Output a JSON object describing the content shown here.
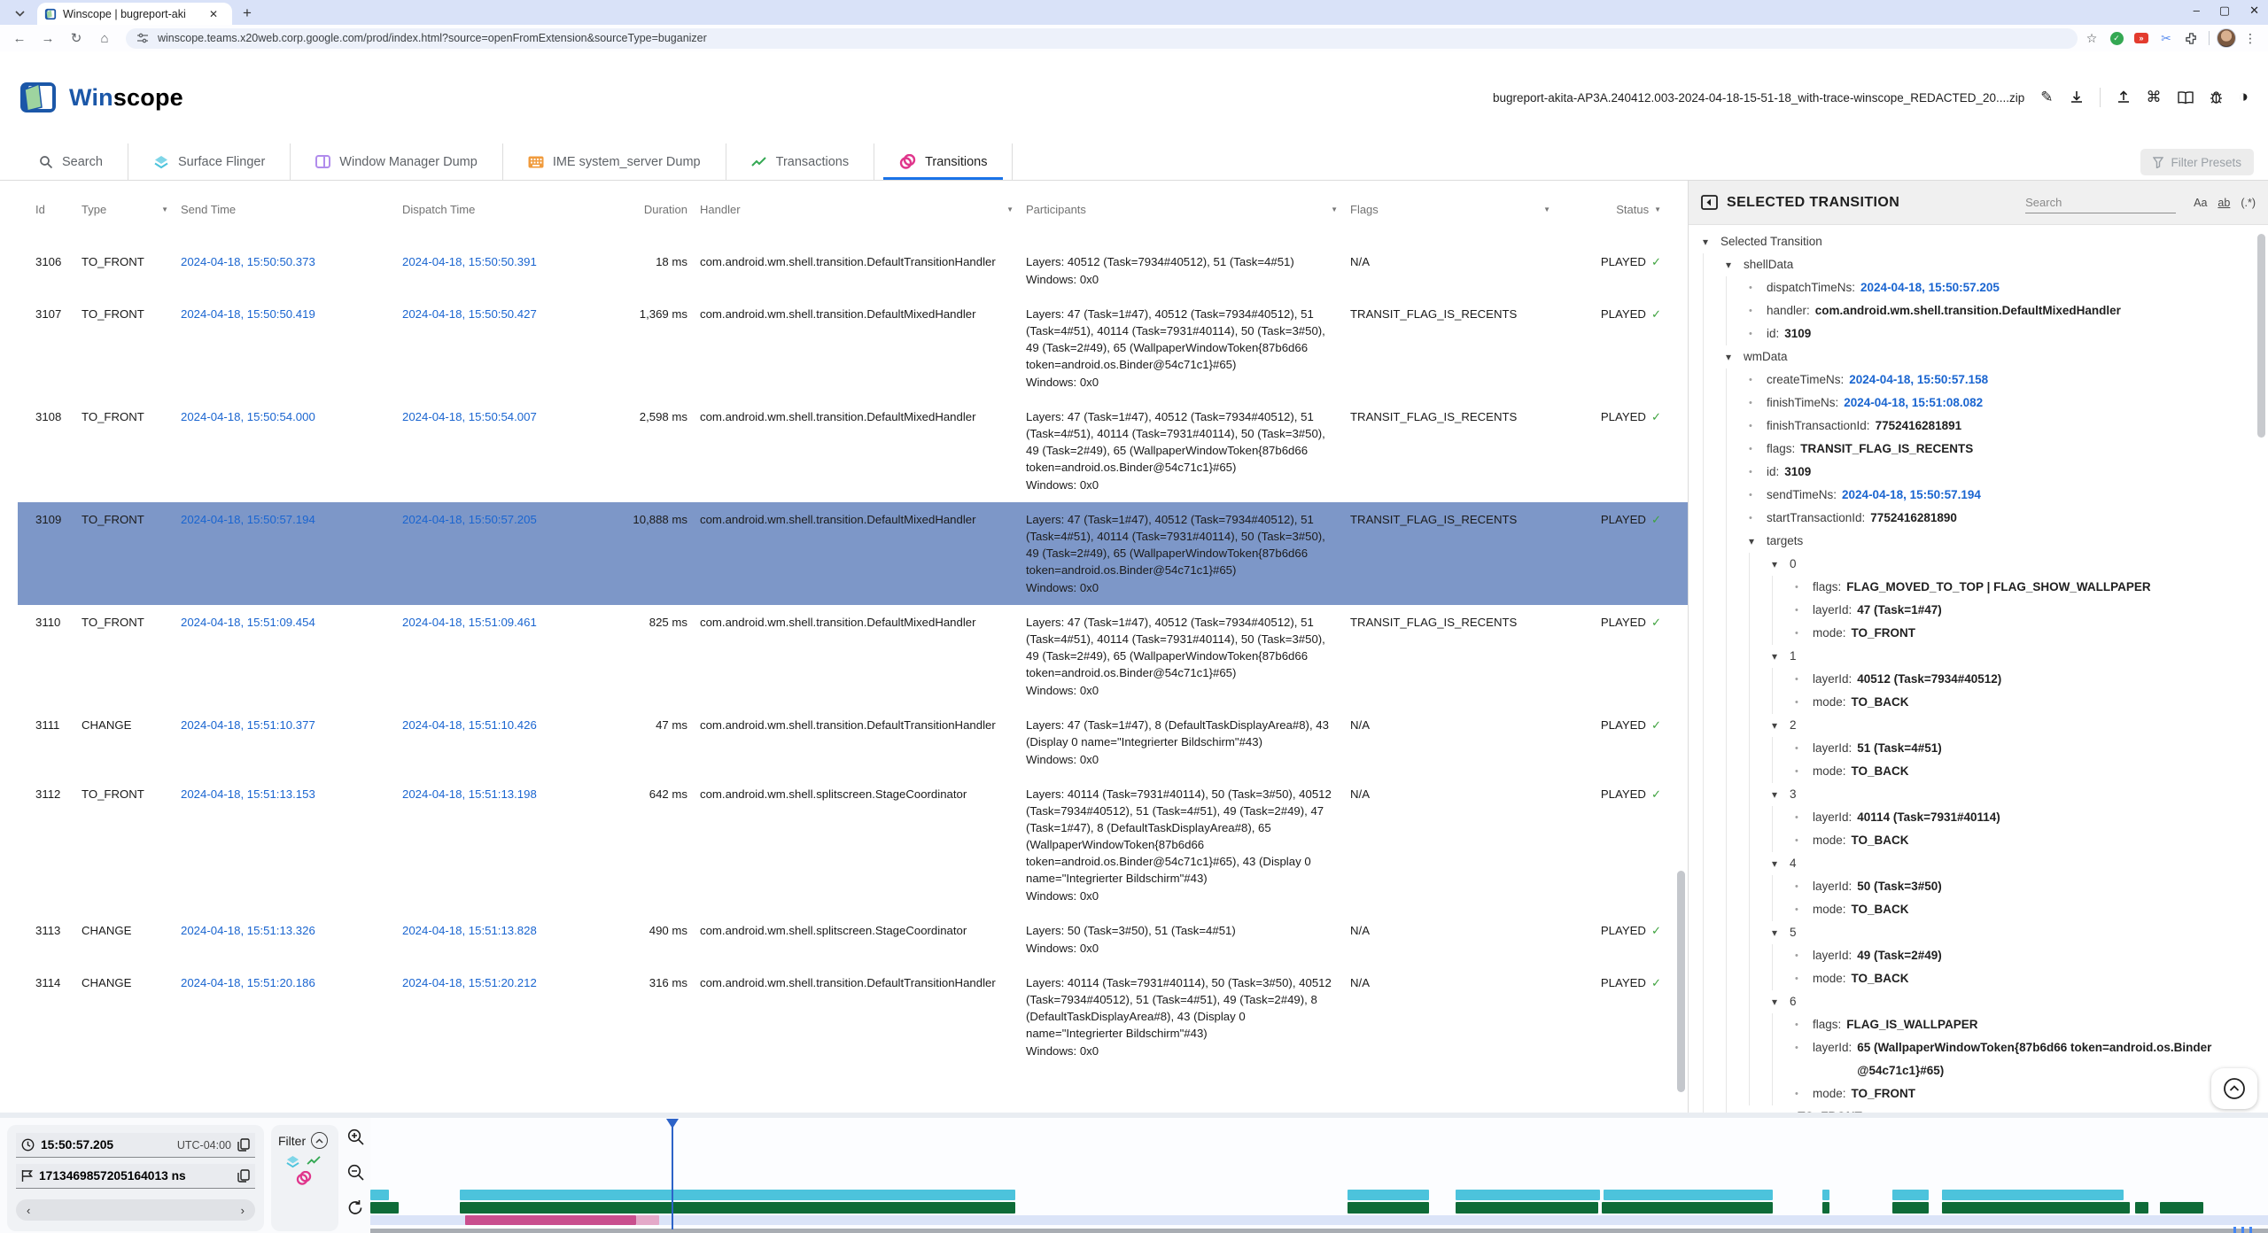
{
  "browser": {
    "tab_title": "Winscope | bugreport-aki",
    "url": "winscope.teams.x20web.corp.google.com/prod/index.html?source=openFromExtension&sourceType=buganizer",
    "window_controls": {
      "minimize": "–",
      "maximize": "▢",
      "close": "✕"
    }
  },
  "header": {
    "app_title_prefix": "Win",
    "app_title_suffix": "scope",
    "file_name": "bugreport-akita-AP3A.240412.003-2024-04-18-15-51-18_with-trace-winscope_REDACTED_20....zip"
  },
  "tabs": [
    {
      "label": "Search",
      "icon": "search-icon",
      "active": false
    },
    {
      "label": "Surface Flinger",
      "icon": "layers-icon",
      "active": false
    },
    {
      "label": "Window Manager Dump",
      "icon": "window-icon",
      "active": false
    },
    {
      "label": "IME system_server Dump",
      "icon": "keyboard-icon",
      "active": false
    },
    {
      "label": "Transactions",
      "icon": "trend-icon",
      "active": false
    },
    {
      "label": "Transitions",
      "icon": "rings-icon",
      "active": true
    }
  ],
  "toolbar": {
    "filter_presets": "Filter Presets"
  },
  "table": {
    "columns": [
      {
        "label": "Id"
      },
      {
        "label": "Type",
        "filter": true
      },
      {
        "label": "Send Time"
      },
      {
        "label": "Dispatch Time"
      },
      {
        "label": "Duration"
      },
      {
        "label": "Handler",
        "filter": true
      },
      {
        "label": "Participants",
        "filter": true
      },
      {
        "label": "Flags",
        "filter": true
      },
      {
        "label": "Status",
        "filter": true
      }
    ],
    "rows": [
      {
        "id": "3106",
        "type": "TO_FRONT",
        "send_time": "2024-04-18, 15:50:50.373",
        "dispatch_time": "2024-04-18, 15:50:50.391",
        "duration": "18 ms",
        "handler": "com.android.wm.shell.transition.DefaultTransitionHandler",
        "layers": "Layers: 40512 (Task=7934#40512), 51 (Task=4#51)",
        "windows": "Windows: 0x0",
        "flags": "N/A",
        "status": "PLAYED",
        "selected": false
      },
      {
        "id": "3107",
        "type": "TO_FRONT",
        "send_time": "2024-04-18, 15:50:50.419",
        "dispatch_time": "2024-04-18, 15:50:50.427",
        "duration": "1,369 ms",
        "handler": "com.android.wm.shell.transition.DefaultMixedHandler",
        "layers": "Layers: 47 (Task=1#47), 40512 (Task=7934#40512), 51 (Task=4#51), 40114 (Task=7931#40114), 50 (Task=3#50), 49 (Task=2#49), 65 (WallpaperWindowToken{87b6d66 token=android.os.Binder@54c71c1}#65)",
        "windows": "Windows: 0x0",
        "flags": "TRANSIT_FLAG_IS_RECENTS",
        "status": "PLAYED",
        "selected": false
      },
      {
        "id": "3108",
        "type": "TO_FRONT",
        "send_time": "2024-04-18, 15:50:54.000",
        "dispatch_time": "2024-04-18, 15:50:54.007",
        "duration": "2,598 ms",
        "handler": "com.android.wm.shell.transition.DefaultMixedHandler",
        "layers": "Layers: 47 (Task=1#47), 40512 (Task=7934#40512), 51 (Task=4#51), 40114 (Task=7931#40114), 50 (Task=3#50), 49 (Task=2#49), 65 (WallpaperWindowToken{87b6d66 token=android.os.Binder@54c71c1}#65)",
        "windows": "Windows: 0x0",
        "flags": "TRANSIT_FLAG_IS_RECENTS",
        "status": "PLAYED",
        "selected": false
      },
      {
        "id": "3109",
        "type": "TO_FRONT",
        "send_time": "2024-04-18, 15:50:57.194",
        "dispatch_time": "2024-04-18, 15:50:57.205",
        "duration": "10,888 ms",
        "handler": "com.android.wm.shell.transition.DefaultMixedHandler",
        "layers": "Layers: 47 (Task=1#47), 40512 (Task=7934#40512), 51 (Task=4#51), 40114 (Task=7931#40114), 50 (Task=3#50), 49 (Task=2#49), 65 (WallpaperWindowToken{87b6d66 token=android.os.Binder@54c71c1}#65)",
        "windows": "Windows: 0x0",
        "flags": "TRANSIT_FLAG_IS_RECENTS",
        "status": "PLAYED",
        "selected": true
      },
      {
        "id": "3110",
        "type": "TO_FRONT",
        "send_time": "2024-04-18, 15:51:09.454",
        "dispatch_time": "2024-04-18, 15:51:09.461",
        "duration": "825 ms",
        "handler": "com.android.wm.shell.transition.DefaultMixedHandler",
        "layers": "Layers: 47 (Task=1#47), 40512 (Task=7934#40512), 51 (Task=4#51), 40114 (Task=7931#40114), 50 (Task=3#50), 49 (Task=2#49), 65 (WallpaperWindowToken{87b6d66 token=android.os.Binder@54c71c1}#65)",
        "windows": "Windows: 0x0",
        "flags": "TRANSIT_FLAG_IS_RECENTS",
        "status": "PLAYED",
        "selected": false
      },
      {
        "id": "3111",
        "type": "CHANGE",
        "send_time": "2024-04-18, 15:51:10.377",
        "dispatch_time": "2024-04-18, 15:51:10.426",
        "duration": "47 ms",
        "handler": "com.android.wm.shell.transition.DefaultTransitionHandler",
        "layers": "Layers: 47 (Task=1#47), 8 (DefaultTaskDisplayArea#8), 43 (Display 0 name=\"Integrierter Bildschirm\"#43)",
        "windows": "Windows: 0x0",
        "flags": "N/A",
        "status": "PLAYED",
        "selected": false
      },
      {
        "id": "3112",
        "type": "TO_FRONT",
        "send_time": "2024-04-18, 15:51:13.153",
        "dispatch_time": "2024-04-18, 15:51:13.198",
        "duration": "642 ms",
        "handler": "com.android.wm.shell.splitscreen.StageCoordinator",
        "layers": "Layers: 40114 (Task=7931#40114), 50 (Task=3#50), 40512 (Task=7934#40512), 51 (Task=4#51), 49 (Task=2#49), 47 (Task=1#47), 8 (DefaultTaskDisplayArea#8), 65 (WallpaperWindowToken{87b6d66 token=android.os.Binder@54c71c1}#65), 43 (Display 0 name=\"Integrierter Bildschirm\"#43)",
        "windows": "Windows: 0x0",
        "flags": "N/A",
        "status": "PLAYED",
        "selected": false
      },
      {
        "id": "3113",
        "type": "CHANGE",
        "send_time": "2024-04-18, 15:51:13.326",
        "dispatch_time": "2024-04-18, 15:51:13.828",
        "duration": "490 ms",
        "handler": "com.android.wm.shell.splitscreen.StageCoordinator",
        "layers": "Layers: 50 (Task=3#50), 51 (Task=4#51)",
        "windows": "Windows: 0x0",
        "flags": "N/A",
        "status": "PLAYED",
        "selected": false
      },
      {
        "id": "3114",
        "type": "CHANGE",
        "send_time": "2024-04-18, 15:51:20.186",
        "dispatch_time": "2024-04-18, 15:51:20.212",
        "duration": "316 ms",
        "handler": "com.android.wm.shell.transition.DefaultTransitionHandler",
        "layers": "Layers: 40114 (Task=7931#40114), 50 (Task=3#50), 40512 (Task=7934#40512), 51 (Task=4#51), 49 (Task=2#49), 8 (DefaultTaskDisplayArea#8), 43 (Display 0 name=\"Integrierter Bildschirm\"#43)",
        "windows": "Windows: 0x0",
        "flags": "N/A",
        "status": "PLAYED",
        "selected": false
      }
    ]
  },
  "panel": {
    "title": "SELECTED TRANSITION",
    "search_placeholder": "Search",
    "match_case": "Aa",
    "match_word": "ab",
    "regex": "(.*)",
    "tree": [
      {
        "node": true,
        "level": 0,
        "label": "Selected Transition"
      },
      {
        "node": true,
        "level": 1,
        "label": "shellData"
      },
      {
        "level": 2,
        "key": "dispatchTimeNs",
        "value": "2024-04-18, 15:50:57.205",
        "blue": true
      },
      {
        "level": 2,
        "key": "handler",
        "value": "com.android.wm.shell.transition.DefaultMixedHandler"
      },
      {
        "level": 2,
        "key": "id",
        "value": "3109"
      },
      {
        "node": true,
        "level": 1,
        "label": "wmData"
      },
      {
        "level": 2,
        "key": "createTimeNs",
        "value": "2024-04-18, 15:50:57.158",
        "blue": true
      },
      {
        "level": 2,
        "key": "finishTimeNs",
        "value": "2024-04-18, 15:51:08.082",
        "blue": true
      },
      {
        "level": 2,
        "key": "finishTransactionId",
        "value": "7752416281891"
      },
      {
        "level": 2,
        "key": "flags",
        "value": "TRANSIT_FLAG_IS_RECENTS"
      },
      {
        "level": 2,
        "key": "id",
        "value": "3109"
      },
      {
        "level": 2,
        "key": "sendTimeNs",
        "value": "2024-04-18, 15:50:57.194",
        "blue": true
      },
      {
        "level": 2,
        "key": "startTransactionId",
        "value": "7752416281890"
      },
      {
        "node": true,
        "level": 2,
        "label": "targets"
      },
      {
        "node": true,
        "level": 3,
        "label": "0"
      },
      {
        "level": 4,
        "key": "flags",
        "value": "FLAG_MOVED_TO_TOP | FLAG_SHOW_WALLPAPER"
      },
      {
        "level": 4,
        "key": "layerId",
        "value": "47 (Task=1#47)"
      },
      {
        "level": 4,
        "key": "mode",
        "value": "TO_FRONT"
      },
      {
        "node": true,
        "level": 3,
        "label": "1"
      },
      {
        "level": 4,
        "key": "layerId",
        "value": "40512 (Task=7934#40512)"
      },
      {
        "level": 4,
        "key": "mode",
        "value": "TO_BACK"
      },
      {
        "node": true,
        "level": 3,
        "label": "2"
      },
      {
        "level": 4,
        "key": "layerId",
        "value": "51 (Task=4#51)"
      },
      {
        "level": 4,
        "key": "mode",
        "value": "TO_BACK"
      },
      {
        "node": true,
        "level": 3,
        "label": "3"
      },
      {
        "level": 4,
        "key": "layerId",
        "value": "40114 (Task=7931#40114)"
      },
      {
        "level": 4,
        "key": "mode",
        "value": "TO_BACK"
      },
      {
        "node": true,
        "level": 3,
        "label": "4"
      },
      {
        "level": 4,
        "key": "layerId",
        "value": "50 (Task=3#50)"
      },
      {
        "level": 4,
        "key": "mode",
        "value": "TO_BACK"
      },
      {
        "node": true,
        "level": 3,
        "label": "5"
      },
      {
        "level": 4,
        "key": "layerId",
        "value": "49 (Task=2#49)"
      },
      {
        "level": 4,
        "key": "mode",
        "value": "TO_BACK"
      },
      {
        "node": true,
        "level": 3,
        "label": "6"
      },
      {
        "level": 4,
        "key": "flags",
        "value": "FLAG_IS_WALLPAPER"
      },
      {
        "level": 4,
        "key": "layerId",
        "value": "65 (WallpaperWindowToken{87b6d66 token=android.os.Binder @54c71c1}#65)"
      },
      {
        "level": 4,
        "key": "mode",
        "value": "TO_FRONT"
      },
      {
        "level": 2,
        "key": "type",
        "value": "TO_FRONT"
      }
    ]
  },
  "bottom": {
    "time": "15:50:57.205",
    "utc": "UTC-04:00",
    "ns": "1713469857205164013 ns",
    "filter_label": "Filter"
  },
  "timeline": {
    "cursor_pct": 15.9,
    "sf": [
      [
        0,
        1
      ],
      [
        4.7,
        29.3
      ],
      [
        51.5,
        4.3
      ],
      [
        57.2,
        7.6
      ],
      [
        65,
        8.9
      ],
      [
        76.5,
        0.4
      ],
      [
        80.2,
        1.9
      ],
      [
        82.8,
        9.6
      ]
    ],
    "transactions": [
      [
        0,
        1.5
      ],
      [
        4.7,
        29.3
      ],
      [
        51.5,
        4.3
      ],
      [
        57.2,
        7.5
      ],
      [
        64.9,
        9
      ],
      [
        76.5,
        0.4
      ],
      [
        80.2,
        1.9
      ],
      [
        82.8,
        9.9
      ],
      [
        93,
        0.7
      ],
      [
        94.3,
        2.3
      ]
    ],
    "transitions": [
      [
        5,
        9
      ]
    ],
    "transitions_light": [
      [
        14,
        1.2
      ]
    ],
    "markers_pct": [
      98.2,
      98.6,
      99.0
    ]
  },
  "colors": {
    "accent_blue": "#1a73e8",
    "link_blue": "#1a65d0",
    "selected_row": "#7d97c8",
    "status_green": "#3fa33f",
    "timeline_sf_cyan": "#4cc3dc",
    "timeline_transactions_green": "#0e6b38",
    "timeline_transitions_magenta": "#c94f8e",
    "transitions_strip": "#dbe4f8"
  }
}
